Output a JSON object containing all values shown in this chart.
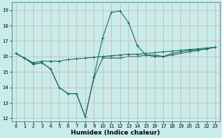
{
  "xlabel": "Humidex (Indice chaleur)",
  "xlim": [
    -0.5,
    23.5
  ],
  "ylim": [
    11.8,
    19.5
  ],
  "yticks": [
    12,
    13,
    14,
    15,
    16,
    17,
    18,
    19
  ],
  "xticks": [
    0,
    1,
    2,
    3,
    4,
    5,
    6,
    7,
    8,
    9,
    10,
    11,
    12,
    13,
    14,
    15,
    16,
    17,
    18,
    19,
    20,
    21,
    22,
    23
  ],
  "bg_color": "#c8ecea",
  "grid_color": "#d4aaaa",
  "line_color": "#1a6b65",
  "line1_x": [
    0,
    1,
    2,
    3,
    4,
    5,
    6,
    7,
    8,
    9,
    10,
    11,
    12,
    13,
    14,
    15,
    16,
    17,
    18,
    19,
    20,
    21,
    22,
    23
  ],
  "line1_y": [
    16.2,
    15.9,
    15.5,
    15.6,
    15.2,
    14.0,
    13.6,
    13.6,
    12.1,
    14.6,
    15.9,
    15.9,
    15.9,
    16.0,
    16.0,
    16.1,
    16.1,
    16.0,
    16.1,
    16.2,
    16.3,
    16.4,
    16.5,
    16.6
  ],
  "line2_x": [
    0,
    1,
    2,
    3,
    4,
    5,
    6,
    7,
    8,
    9,
    10,
    11,
    12,
    13,
    14,
    15,
    16,
    17,
    18,
    19,
    20,
    21,
    22,
    23
  ],
  "line2_y": [
    16.2,
    15.9,
    15.5,
    15.6,
    15.2,
    14.0,
    13.6,
    13.6,
    12.1,
    14.7,
    17.2,
    18.85,
    18.95,
    18.2,
    16.7,
    16.1,
    16.0,
    16.0,
    16.2,
    16.3,
    16.4,
    16.4,
    16.5,
    16.6
  ],
  "line3_x": [
    0,
    1,
    2,
    3,
    4,
    5,
    6,
    7,
    8,
    9,
    10,
    11,
    12,
    13,
    14,
    15,
    16,
    17,
    18,
    19,
    20,
    21,
    22,
    23
  ],
  "line3_y": [
    16.2,
    15.9,
    15.6,
    15.7,
    15.7,
    15.7,
    15.8,
    15.85,
    15.9,
    15.95,
    16.0,
    16.05,
    16.1,
    16.15,
    16.15,
    16.2,
    16.25,
    16.3,
    16.35,
    16.4,
    16.45,
    16.5,
    16.55,
    16.6
  ]
}
